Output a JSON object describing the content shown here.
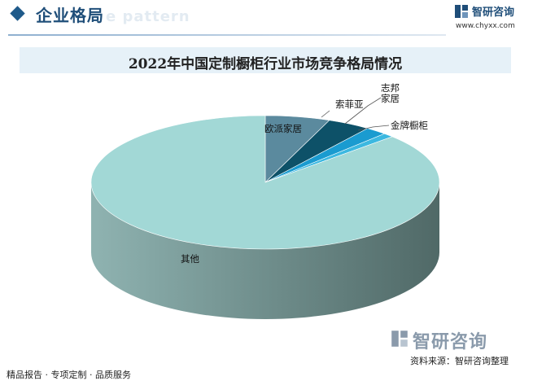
{
  "header": {
    "title": "企业格局",
    "ghost_text": "e pattern",
    "brand_name": "智研咨询",
    "brand_url": "www.chyxx.com"
  },
  "chart_data": {
    "type": "pie",
    "style": "3d",
    "title": "2022年中国定制橱柜行业市场竞争格局情况",
    "legend": "none",
    "slices": [
      {
        "label": "欧派家居",
        "value": 6.0,
        "color": "#5b8a9e"
      },
      {
        "label": "索菲亚",
        "value": 4.0,
        "color": "#0d5168"
      },
      {
        "label": "志邦\n家居",
        "value": 2.0,
        "color": "#1a9bd0"
      },
      {
        "label": "金牌橱柜",
        "value": 1.0,
        "color": "#3cb8e0"
      },
      {
        "label": "其他",
        "value": 87.0,
        "color": "#a2d8d6"
      }
    ],
    "side_colors": {
      "light": "#8fb3b1",
      "dark": "#506967"
    }
  },
  "footer": {
    "tagline": "精品报告 · 专项定制 · 品质服务",
    "brand": "智研咨询",
    "source": "资料来源：智研咨询整理"
  }
}
